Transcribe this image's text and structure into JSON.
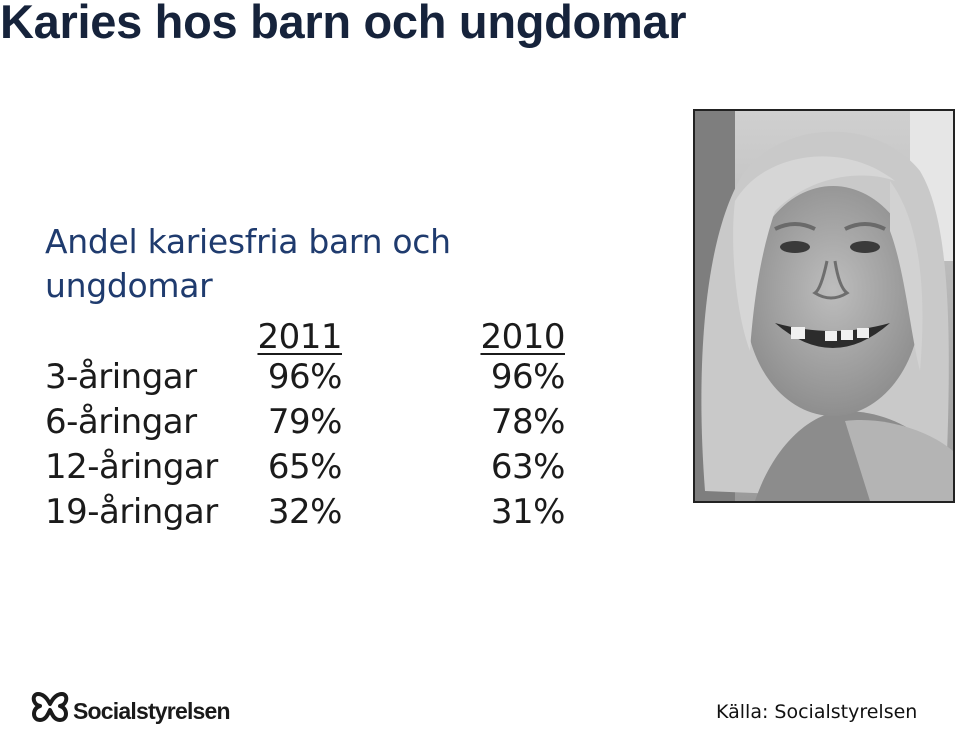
{
  "slide": {
    "title": "Karies hos barn och ungdomar",
    "subtitle": "Andel kariesfria barn och ungdomar",
    "table": {
      "headers": [
        "2011",
        "2010"
      ],
      "rows": [
        {
          "label": "3-åringar",
          "v2011": "96%",
          "v2010": "96%"
        },
        {
          "label": "6-åringar",
          "v2011": "79%",
          "v2010": "78%"
        },
        {
          "label": "12-åringar",
          "v2011": "65%",
          "v2010": "63%"
        },
        {
          "label": "19-åringar",
          "v2011": "32%",
          "v2010": "31%"
        }
      ]
    },
    "photo": {
      "subject": "smiling-girl-photo"
    },
    "logo": {
      "text": "Socialstyrelsen"
    },
    "source": "Källa: Socialstyrelsen"
  }
}
